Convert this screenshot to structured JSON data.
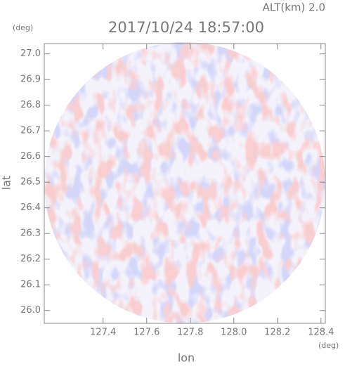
{
  "chart_data": {
    "type": "radar-field",
    "title": "2017/10/24 18:57:00",
    "subtitle": "ALT(km) 2.0",
    "x_label": "lon",
    "y_label": "lat",
    "x_unit": "(deg)",
    "y_unit": "(deg)",
    "xlim": [
      127.13,
      128.42
    ],
    "ylim": [
      25.95,
      27.04
    ],
    "xticks": [
      127.4,
      127.6,
      127.8,
      {
        "value": 128,
        "label": "128.0"
      },
      128.2,
      128.4
    ],
    "yticks": [
      {
        "value": 26,
        "label": "26.0"
      },
      26.1,
      26.2,
      26.3,
      26.4,
      26.5,
      26.6,
      26.7,
      26.8,
      26.9,
      {
        "value": 27,
        "label": "27.0"
      }
    ]
  }
}
